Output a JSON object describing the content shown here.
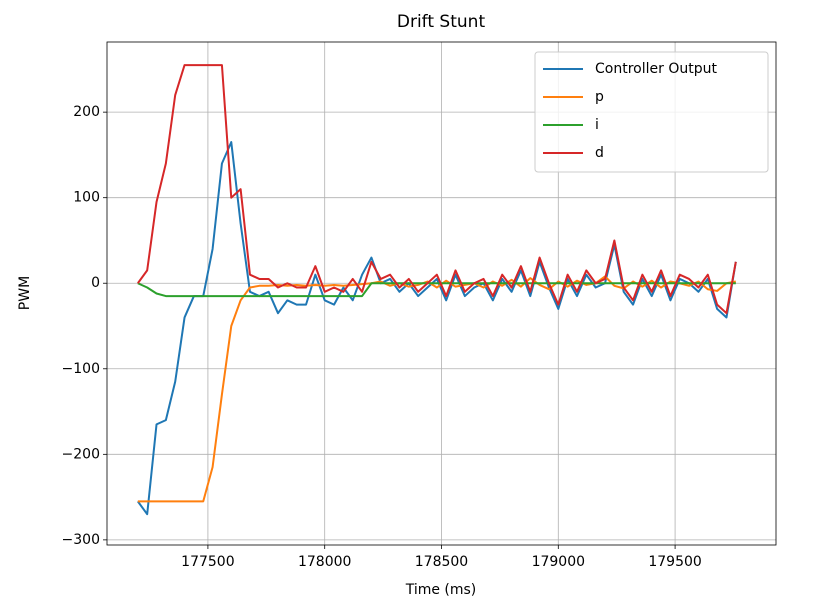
{
  "chart_data": {
    "type": "line",
    "title": "Drift Stunt",
    "x_label": "Time (ms)",
    "y_label": "PWM",
    "x": [
      177200,
      177240,
      177280,
      177320,
      177360,
      177400,
      177440,
      177480,
      177520,
      177560,
      177600,
      177640,
      177680,
      177720,
      177760,
      177800,
      177840,
      177880,
      177920,
      177960,
      178000,
      178040,
      178080,
      178120,
      178160,
      178200,
      178240,
      178280,
      178320,
      178360,
      178400,
      178440,
      178480,
      178520,
      178560,
      178600,
      178640,
      178680,
      178720,
      178760,
      178800,
      178840,
      178880,
      178920,
      178960,
      179000,
      179040,
      179080,
      179120,
      179160,
      179200,
      179240,
      179280,
      179320,
      179360,
      179400,
      179440,
      179480,
      179520,
      179560,
      179600,
      179640,
      179680,
      179720,
      179760
    ],
    "series": [
      {
        "name": "Controller Output",
        "color": "#1f77b4",
        "values": [
          -255,
          -270,
          -165,
          -160,
          -115,
          -40,
          -15,
          -15,
          40,
          140,
          165,
          70,
          -10,
          -15,
          -10,
          -35,
          -20,
          -25,
          -25,
          10,
          -20,
          -25,
          -5,
          -20,
          10,
          30,
          0,
          5,
          -10,
          0,
          -15,
          -5,
          5,
          -20,
          10,
          -15,
          -5,
          0,
          -20,
          5,
          -10,
          15,
          -15,
          25,
          -5,
          -30,
          5,
          -15,
          10,
          -5,
          0,
          45,
          -10,
          -25,
          5,
          -15,
          10,
          -20,
          5,
          0,
          -10,
          5,
          -30,
          -40,
          25
        ]
      },
      {
        "name": "p",
        "color": "#ff7f0e",
        "values": [
          -255,
          -255,
          -255,
          -255,
          -255,
          -255,
          -255,
          -255,
          -215,
          -130,
          -50,
          -20,
          -5,
          -3,
          -3,
          -2,
          -3,
          -2,
          -3,
          -2,
          -3,
          -2,
          -3,
          -2,
          -1,
          0,
          2,
          -3,
          0,
          -4,
          -2,
          2,
          -5,
          3,
          -4,
          -2,
          0,
          -5,
          2,
          -3,
          4,
          -4,
          6,
          -2,
          -7,
          2,
          -4,
          3,
          -2,
          0,
          8,
          -3,
          -6,
          2,
          -4,
          3,
          -5,
          2,
          0,
          -3,
          2,
          -7,
          -9,
          0,
          2
        ]
      },
      {
        "name": "i",
        "color": "#2ca02c",
        "values": [
          0,
          -5,
          -12,
          -15,
          -15,
          -15,
          -15,
          -15,
          -15,
          -15,
          -15,
          -15,
          -15,
          -15,
          -15,
          -15,
          -15,
          -15,
          -15,
          -15,
          -15,
          -15,
          -15,
          -15,
          -15,
          0,
          0,
          0,
          0,
          0,
          0,
          0,
          0,
          0,
          0,
          0,
          0,
          0,
          0,
          0,
          0,
          0,
          0,
          0,
          0,
          0,
          0,
          0,
          0,
          0,
          0,
          0,
          0,
          0,
          0,
          0,
          0,
          0,
          0,
          0,
          0,
          0,
          0,
          0,
          0
        ]
      },
      {
        "name": "d",
        "color": "#d62728",
        "values": [
          0,
          15,
          95,
          140,
          220,
          255,
          255,
          255,
          255,
          255,
          100,
          110,
          10,
          5,
          5,
          -5,
          0,
          -5,
          -5,
          20,
          -10,
          -5,
          -10,
          5,
          -10,
          25,
          5,
          10,
          -5,
          5,
          -10,
          0,
          10,
          -15,
          15,
          -10,
          0,
          5,
          -15,
          10,
          -5,
          20,
          -10,
          30,
          0,
          -25,
          10,
          -10,
          15,
          0,
          5,
          50,
          -5,
          -20,
          10,
          -10,
          15,
          -15,
          10,
          5,
          -5,
          10,
          -25,
          -35,
          25
        ]
      }
    ],
    "xlim": [
      177068,
      179932
    ],
    "ylim": [
      -306,
      282
    ],
    "xticks": [
      177500,
      178000,
      178500,
      179000,
      179500
    ],
    "yticks": [
      {
        "value": -300,
        "label": "−300"
      },
      {
        "value": -200,
        "label": "−200"
      },
      {
        "value": -100,
        "label": "−100"
      },
      0,
      100,
      200
    ],
    "grid": true,
    "legend": "upper right"
  }
}
